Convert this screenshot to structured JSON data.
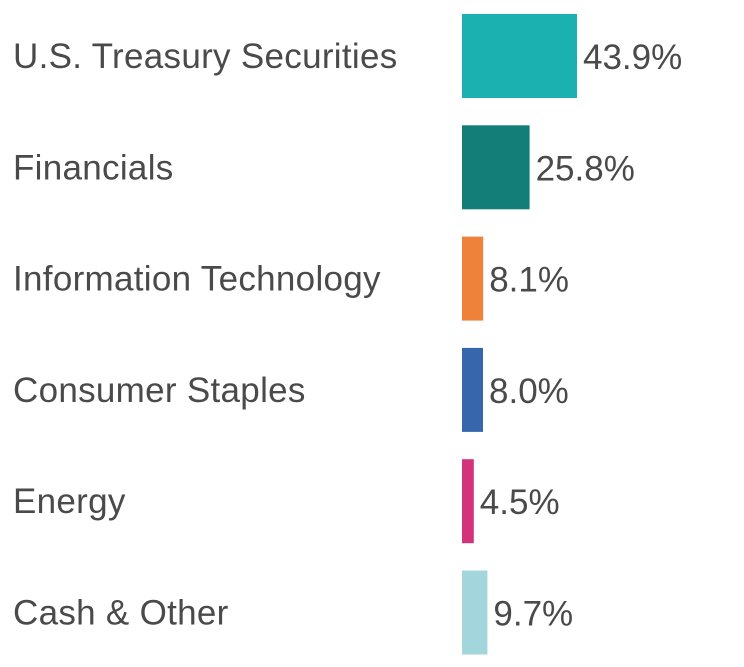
{
  "chart_data": {
    "type": "bar",
    "orientation": "horizontal",
    "categories": [
      "U.S. Treasury Securities",
      "Financials",
      "Information Technology",
      "Consumer Staples",
      "Energy",
      "Cash & Other"
    ],
    "values": [
      43.9,
      25.8,
      8.1,
      8.0,
      4.5,
      9.7
    ],
    "value_labels": [
      "43.9%",
      "25.8%",
      "8.1%",
      "8.0%",
      "4.5%",
      "9.7%"
    ],
    "colors": [
      "#1ab1b0",
      "#137e77",
      "#ef823a",
      "#3866ac",
      "#d4327a",
      "#a3d5dc"
    ],
    "unit": "%",
    "title": "",
    "xlabel": "",
    "ylabel": "",
    "grid": false,
    "legend": "none"
  }
}
